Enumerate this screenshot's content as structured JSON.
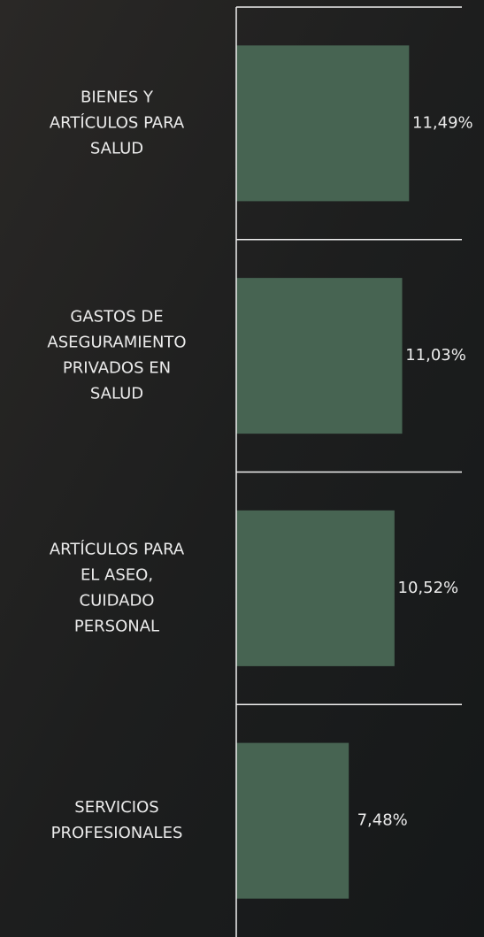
{
  "chart_data": {
    "type": "bar",
    "orientation": "horizontal",
    "categories": [
      [
        "BIENES Y",
        "ARTÍCULOS PARA",
        "SALUD"
      ],
      [
        "GASTOS DE",
        "ASEGURAMIENTO",
        "PRIVADOS EN",
        "SALUD"
      ],
      [
        "ARTÍCULOS PARA",
        "EL ASEO,",
        "CUIDADO",
        "PERSONAL"
      ],
      [
        "SERVICIOS",
        "PROFESIONALES"
      ]
    ],
    "values": [
      11.49,
      11.03,
      10.52,
      7.48
    ],
    "value_labels": [
      "11,49%",
      "11,03%",
      "10,52%",
      "7,48%"
    ],
    "color": "#476452",
    "xlim": [
      0,
      15
    ]
  }
}
